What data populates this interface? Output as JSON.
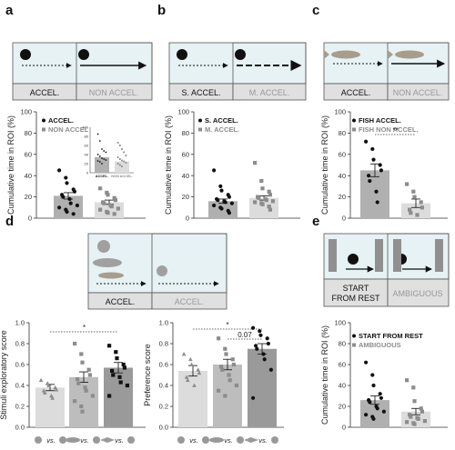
{
  "colors": {
    "black": "#111111",
    "gray": "#8c8c8c",
    "bar_dark": "#b0b0b0",
    "bar_light": "#dcdcdc",
    "bar_mid": "#bdbdbd",
    "bar_darkest": "#9a9a9a",
    "tank_fill": "#e6f2f3",
    "label_fill": "#e0e0e0"
  },
  "panels": {
    "a": {
      "letter": "a",
      "cond1": "ACCEL.",
      "cond2": "NON ACCEL."
    },
    "b": {
      "letter": "b",
      "cond1": "S. ACCEL.",
      "cond2": "M. ACCEL."
    },
    "c": {
      "letter": "c",
      "cond1": "ACCEL.",
      "cond2": "NON ACCEL."
    },
    "d": {
      "letter": "d",
      "cond1": "ACCEL.",
      "cond2": "ACCEL."
    },
    "e": {
      "letter": "e",
      "cond1_line1": "START",
      "cond1_line2": "FROM REST",
      "cond2": "AMBIGUOUS"
    }
  },
  "vs_text": "vs.",
  "chart_data": [
    {
      "id": "a",
      "type": "bar",
      "ylabel": "Cumulative time in ROI (%)",
      "ylim": [
        0,
        100
      ],
      "yticks": [
        0,
        20,
        40,
        60,
        80,
        100
      ],
      "series": [
        {
          "name": "ACCEL.",
          "marker": "circle",
          "mean": 21,
          "sem": 3,
          "points": [
            45,
            38,
            33,
            27,
            25,
            22,
            20,
            18,
            14,
            12,
            10,
            8,
            6,
            4
          ]
        },
        {
          "name": "NON ACCEL.",
          "marker": "square",
          "mean": 15,
          "sem": 2,
          "points": [
            28,
            24,
            22,
            19,
            17,
            15,
            14,
            12,
            11,
            9,
            8,
            6,
            5,
            4
          ]
        }
      ],
      "inset": {
        "xticks": [
          "ACCEL.",
          "NON ACCEL."
        ],
        "yticks": [
          0,
          20,
          40,
          60,
          80,
          100
        ],
        "series": [
          {
            "mean": 34,
            "sem": 4,
            "points": [
              85,
              70,
              52,
              48,
              45,
              40,
              36,
              32,
              30,
              28,
              26,
              24,
              20
            ]
          },
          {
            "mean": 25,
            "sem": 4,
            "points": [
              66,
              60,
              52,
              45,
              38,
              34,
              30,
              27,
              25,
              22,
              20,
              17,
              14
            ]
          }
        ]
      }
    },
    {
      "id": "b",
      "type": "bar",
      "ylabel": "Cumulative time in ROI (%)",
      "ylim": [
        0,
        100
      ],
      "yticks": [
        0,
        20,
        40,
        60,
        80,
        100
      ],
      "series": [
        {
          "name": "S. ACCEL.",
          "marker": "circle",
          "mean": 16,
          "sem": 2,
          "points": [
            45,
            30,
            26,
            22,
            20,
            18,
            17,
            16,
            15,
            14,
            12,
            10,
            9,
            7,
            5
          ]
        },
        {
          "name": "M. ACCEL.",
          "marker": "square",
          "mean": 19,
          "sem": 2,
          "points": [
            52,
            35,
            28,
            25,
            22,
            20,
            19,
            18,
            17,
            16,
            15,
            14,
            13,
            11,
            8
          ]
        }
      ]
    },
    {
      "id": "c",
      "type": "bar",
      "ylabel": "Cumulative time in ROI (%)",
      "ylim": [
        0,
        100
      ],
      "yticks": [
        0,
        20,
        40,
        60,
        80,
        100
      ],
      "significance": "**",
      "series": [
        {
          "name": "FISH ACCEL.",
          "marker": "circle",
          "mean": 45,
          "sem": 6,
          "points": [
            72,
            65,
            55,
            50,
            45,
            40,
            35,
            25,
            15
          ]
        },
        {
          "name": "FISH NON ACCEL.",
          "marker": "square",
          "mean": 14,
          "sem": 4,
          "points": [
            32,
            25,
            20,
            15,
            10,
            8,
            5,
            3
          ]
        }
      ]
    },
    {
      "id": "d1",
      "type": "bar",
      "ylabel": "Stimuli exploratory score",
      "ylim": [
        0,
        1.0
      ],
      "yticks": [
        0,
        0.2,
        0.4,
        0.6,
        0.8,
        1.0
      ],
      "significance": "*",
      "series": [
        {
          "marker": "triangle",
          "mean": 0.38,
          "sem": 0.03,
          "points": [
            0.45,
            0.42,
            0.4,
            0.38,
            0.36,
            0.35,
            0.33,
            0.3,
            0.28
          ]
        },
        {
          "marker": "square",
          "mean": 0.48,
          "sem": 0.05,
          "points": [
            0.8,
            0.7,
            0.62,
            0.55,
            0.5,
            0.46,
            0.42,
            0.38,
            0.35,
            0.3,
            0.25,
            0.2,
            0.15
          ]
        },
        {
          "marker": "square",
          "mean": 0.57,
          "sem": 0.05,
          "points": [
            0.78,
            0.72,
            0.66,
            0.6,
            0.57,
            0.54,
            0.5,
            0.48,
            0.43,
            0.4,
            0.3
          ]
        }
      ]
    },
    {
      "id": "d2",
      "type": "bar",
      "ylabel": "Preference score",
      "ylim": [
        0,
        1.0
      ],
      "yticks": [
        0,
        0.2,
        0.4,
        0.6,
        0.8,
        1.0
      ],
      "significance": [
        "*",
        "0.07"
      ],
      "series": [
        {
          "marker": "triangle",
          "mean": 0.54,
          "sem": 0.05,
          "points": [
            0.7,
            0.65,
            0.6,
            0.55,
            0.52,
            0.48,
            0.45,
            0.4
          ]
        },
        {
          "marker": "square",
          "mean": 0.6,
          "sem": 0.05,
          "points": [
            0.85,
            0.75,
            0.7,
            0.65,
            0.6,
            0.58,
            0.55,
            0.5,
            0.45,
            0.4,
            0.35,
            0.3
          ]
        },
        {
          "marker": "circle",
          "mean": 0.75,
          "sem": 0.05,
          "points": [
            0.95,
            0.92,
            0.88,
            0.85,
            0.8,
            0.78,
            0.75,
            0.7,
            0.65,
            0.55,
            0.28
          ]
        }
      ]
    },
    {
      "id": "e",
      "type": "bar",
      "ylabel": "Cumulative time in ROI (%)",
      "ylim": [
        0,
        100
      ],
      "yticks": [
        0,
        20,
        40,
        60,
        80,
        100
      ],
      "series": [
        {
          "name": "START FROM REST",
          "marker": "circle",
          "mean": 26,
          "sem": 4,
          "points": [
            62,
            50,
            40,
            32,
            28,
            26,
            24,
            20,
            18,
            15,
            12,
            10,
            8
          ]
        },
        {
          "name": "AMBIGUOUS",
          "marker": "square",
          "mean": 15,
          "sem": 3,
          "points": [
            45,
            38,
            25,
            18,
            15,
            12,
            10,
            9,
            8,
            6,
            5,
            4,
            3
          ]
        }
      ]
    }
  ]
}
